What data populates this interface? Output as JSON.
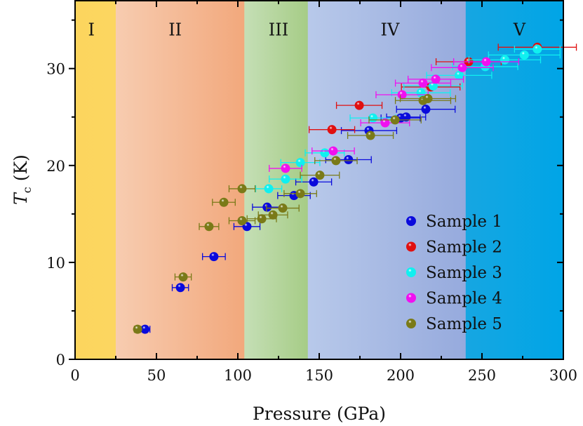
{
  "chart_data": {
    "type": "scatter",
    "xlabel": "Pressure (GPa)",
    "ylabel_main": "T",
    "ylabel_sub": "c",
    "ylabel_unit": " (K)",
    "xlim": [
      0,
      300
    ],
    "ylim": [
      0,
      37
    ],
    "xticks": [
      0,
      50,
      100,
      150,
      200,
      250,
      300
    ],
    "yticks": [
      0,
      10,
      20,
      30
    ],
    "grid": false,
    "legend_position": "bottom-right",
    "regions": [
      {
        "label": "I",
        "from": 0,
        "to": 25,
        "label_x": 10,
        "colors": [
          "#fcd55e",
          "#fcd660"
        ]
      },
      {
        "label": "II",
        "from": 25,
        "to": 104,
        "label_x": 61.5,
        "colors": [
          "#f7ccb0",
          "#f2a87c"
        ]
      },
      {
        "label": "III",
        "from": 104,
        "to": 143,
        "label_x": 125,
        "colors": [
          "#c5dfb6",
          "#a6cc86"
        ]
      },
      {
        "label": "IV",
        "from": 143,
        "to": 240,
        "label_x": 193.5,
        "colors": [
          "#b8c9ea",
          "#96aadd"
        ]
      },
      {
        "label": "V",
        "from": 240,
        "to": 300,
        "label_x": 273,
        "colors": [
          "#16a6e2",
          "#00a5e6"
        ]
      }
    ],
    "series": [
      {
        "name": "Sample 1",
        "color": "#0a0adc",
        "x": [
          43,
          64.7,
          85.3,
          105.6,
          118,
          134.5,
          146.6,
          168,
          180.6,
          200,
          203.4,
          215.5
        ],
        "y": [
          3.1,
          7.4,
          10.6,
          13.7,
          15.7,
          16.9,
          18.3,
          20.6,
          23.6,
          24.9,
          25.0,
          25.8
        ],
        "xerr": [
          3,
          5,
          7,
          8,
          9,
          10,
          11,
          14,
          17,
          12,
          12,
          18
        ]
      },
      {
        "name": "Sample 2",
        "color": "#e01010",
        "x": [
          157.8,
          174.6,
          218.5,
          241.8,
          284
        ],
        "y": [
          23.7,
          26.2,
          28.1,
          30.7,
          32.2
        ],
        "xerr": [
          14,
          14,
          18,
          20,
          24
        ]
      },
      {
        "name": "Sample 3",
        "color": "#10f0f0",
        "x": [
          119,
          129.3,
          138.4,
          153.4,
          183,
          212.5,
          220,
          236,
          252,
          264,
          276,
          284
        ],
        "y": [
          17.6,
          18.6,
          20.3,
          21.3,
          24.9,
          27.5,
          28.2,
          29.3,
          30.2,
          30.9,
          31.4,
          32.0
        ],
        "xerr": [
          8,
          10,
          12,
          12,
          14,
          18,
          18,
          20,
          20,
          22,
          22,
          14
        ]
      },
      {
        "name": "Sample 4",
        "color": "#f010f0",
        "x": [
          129.3,
          158.6,
          190.5,
          200.9,
          213.8,
          221.6,
          237.9,
          252.6
        ],
        "y": [
          19.7,
          21.5,
          24.4,
          27.3,
          28.5,
          28.9,
          30.1,
          30.7
        ],
        "xerr": [
          10,
          13,
          15,
          16,
          17,
          17,
          19,
          20
        ]
      },
      {
        "name": "Sample 5",
        "color": "#7a7a18",
        "x": [
          38.4,
          66.4,
          82.3,
          91.4,
          102.6,
          102.6,
          114.7,
          121.6,
          127.6,
          138.4,
          150.4,
          160.3,
          181.5,
          196.6,
          213.8,
          216.8
        ],
        "y": [
          3.1,
          8.5,
          13.7,
          16.2,
          17.6,
          14.3,
          14.5,
          14.9,
          15.6,
          17.1,
          19.0,
          20.5,
          23.1,
          24.7,
          26.7,
          26.9
        ],
        "xerr": [
          2,
          5,
          6,
          7,
          8,
          8,
          9,
          9,
          10,
          10,
          12,
          13,
          14,
          16,
          17,
          17
        ]
      }
    ]
  }
}
